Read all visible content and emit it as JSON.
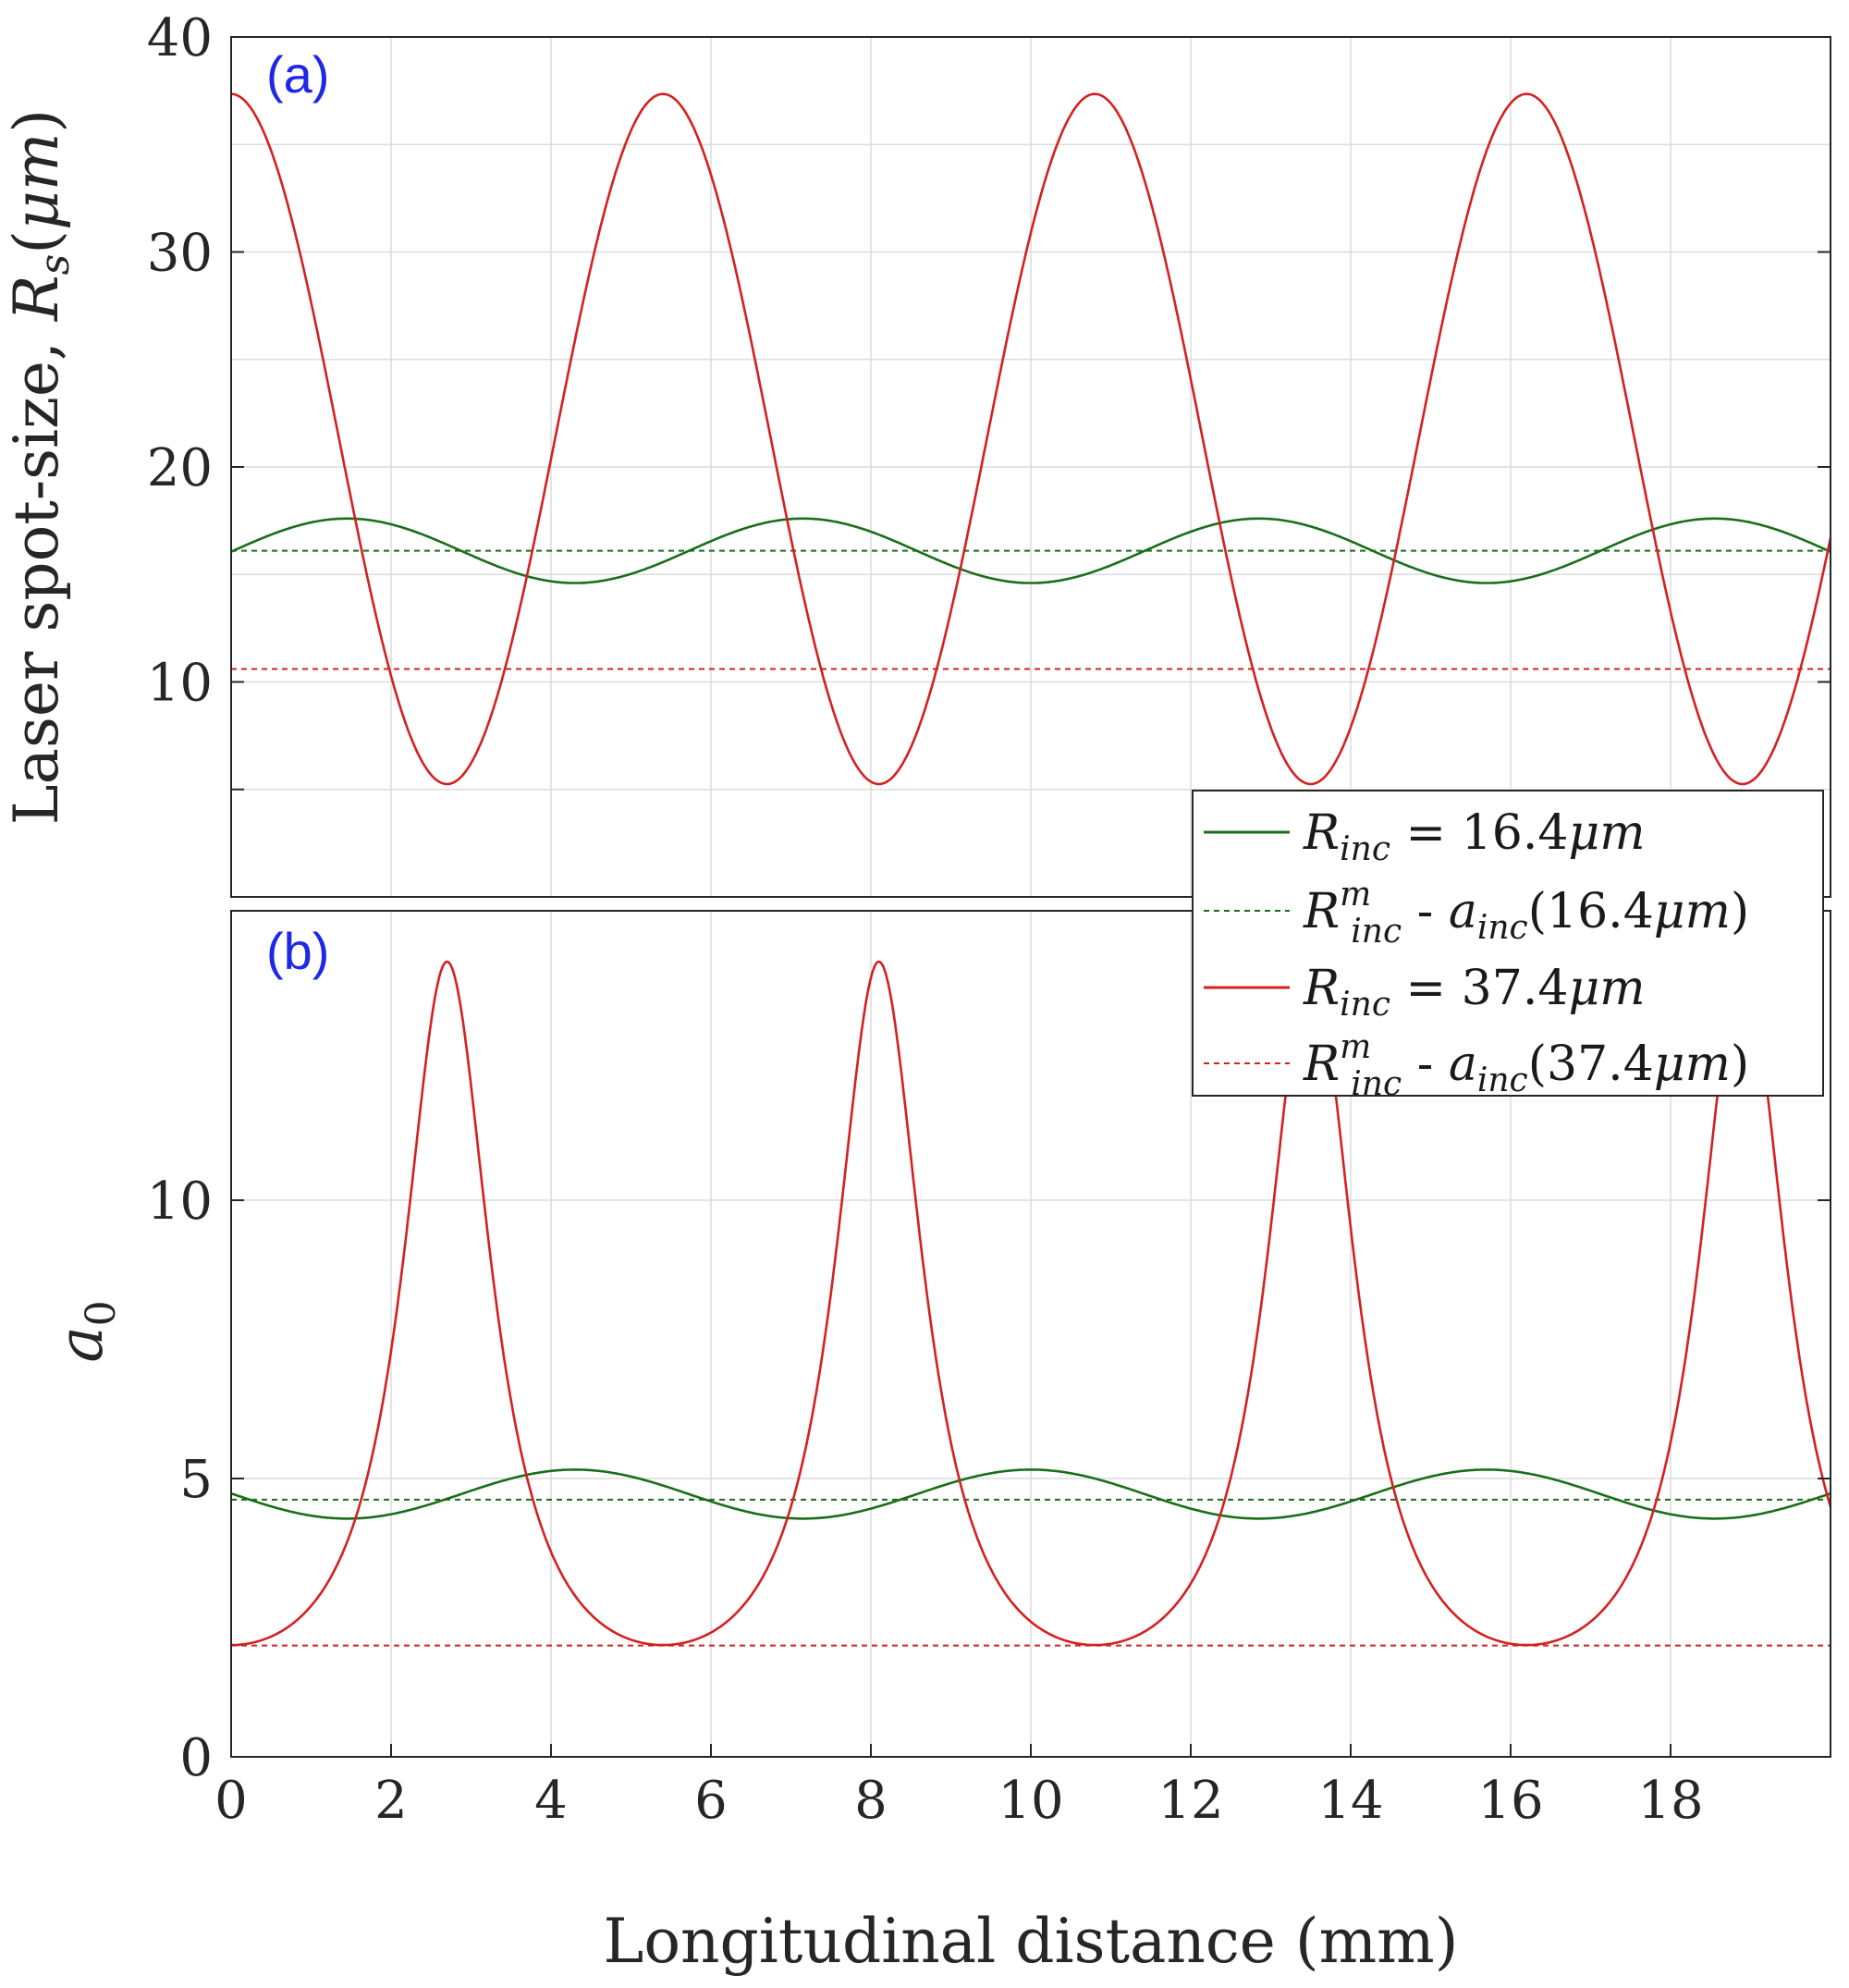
{
  "chart_data": [
    {
      "type": "line",
      "panel_label": "(a)",
      "ylabel": "Laser spot-size, Rs(μm)",
      "ylabel_text": "Laser spot-size,",
      "ylabel_symbol": "R",
      "ylabel_sub": "s",
      "ylabel_paren_open": "(",
      "ylabel_unit": "μm",
      "ylabel_paren_close": ")",
      "xlim": [
        0,
        20
      ],
      "ylim": [
        0,
        40
      ],
      "yticks": [
        10,
        20,
        30,
        40
      ],
      "ytick_labels": [
        "10",
        "20",
        "30",
        "40"
      ],
      "grid": true,
      "series": [
        {
          "name": "R_inc = 16.4μm",
          "style": "solid",
          "color": "#1a6e1a",
          "model": "cos",
          "mean": 16.1,
          "amp": 1.5,
          "period": 5.7,
          "phase": 1.45,
          "sign": 1
        },
        {
          "name": "R^m_inc - a_inc(16.4μm)",
          "style": "dashed",
          "color": "#1a6e1a",
          "constant": 16.1
        },
        {
          "name": "R_inc = 37.4μm",
          "style": "solid",
          "color": "#d42020",
          "model": "cos",
          "mean": 21.3,
          "amp": 16.05,
          "period": 5.4,
          "phase": 0.0,
          "sign": 1
        },
        {
          "name": "R^m_inc - a_inc(37.4μm)",
          "style": "dashed",
          "color": "#d42020",
          "constant": 10.6
        }
      ]
    },
    {
      "type": "line",
      "panel_label": "(b)",
      "ylabel": "a0",
      "ylabel_symbol": "a",
      "ylabel_sub": "0",
      "xlabel": "Longitudinal distance (mm)",
      "xlim": [
        0,
        20
      ],
      "ylim": [
        0,
        15.2
      ],
      "xticks": [
        0,
        2,
        4,
        6,
        8,
        10,
        12,
        14,
        16,
        18
      ],
      "xtick_labels": [
        "0",
        "2",
        "4",
        "6",
        "8",
        "10",
        "12",
        "14",
        "16",
        "18"
      ],
      "yticks": [
        0,
        5,
        10
      ],
      "ytick_labels": [
        "0",
        "5",
        "10"
      ],
      "grid": true,
      "series": [
        {
          "name": "R_inc = 16.4μm",
          "style": "solid",
          "color": "#1a6e1a",
          "model": "cos",
          "mean": 4.72,
          "amp": 0.44,
          "period": 5.7,
          "phase": 4.3,
          "sign": 1
        },
        {
          "name": "R^m_inc - a_inc(16.4μm)",
          "style": "dashed",
          "color": "#1a6e1a",
          "constant": 4.62
        },
        {
          "name": "R_inc = 37.4μm",
          "style": "solid",
          "color": "#d42020",
          "model": "inverse",
          "scale": 75.0,
          "spot_mean": 21.3,
          "spot_amp": 16.05,
          "period": 5.4,
          "phase": 0.0
        },
        {
          "name": "R^m_inc - a_inc(37.4μm)",
          "style": "dashed",
          "color": "#d42020",
          "constant": 2.0
        }
      ]
    }
  ],
  "legend": {
    "placement": "top-right of panel (b), overlapping panel (a)",
    "entries": [
      {
        "base": "R",
        "sup": "",
        "sub": "inc",
        "tail": "= 16.4",
        "unit": "μm",
        "close": "",
        "color": "#1a6e1a",
        "style": "solid"
      },
      {
        "base": "R",
        "sup": "m",
        "sub": "inc",
        "tail": " - ",
        "a": "a",
        "asub": "inc",
        "paren": "(16.4",
        "unit": "μm",
        "close": ")",
        "color": "#1a6e1a",
        "style": "dashed"
      },
      {
        "base": "R",
        "sup": "",
        "sub": "inc",
        "tail": "= 37.4",
        "unit": "μm",
        "close": "",
        "color": "#d42020",
        "style": "solid"
      },
      {
        "base": "R",
        "sup": "m",
        "sub": "inc",
        "tail": " - ",
        "a": "a",
        "asub": "inc",
        "paren": "(37.4",
        "unit": "μm",
        "close": ")",
        "color": "#d42020",
        "style": "dashed"
      }
    ]
  }
}
